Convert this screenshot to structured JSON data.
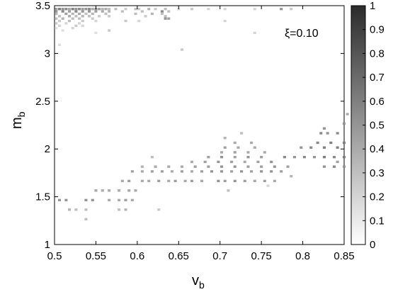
{
  "chart_data": {
    "type": "heatmap",
    "title": "",
    "xlabel": "v",
    "xlabel_subscript": "b",
    "ylabel": "m",
    "ylabel_subscript": "b",
    "xlim": [
      0.5,
      0.85
    ],
    "ylim": [
      1,
      3.5
    ],
    "xticks": [
      "0.5",
      "0.55",
      "0.6",
      "0.65",
      "0.7",
      "0.75",
      "0.8",
      "0.85"
    ],
    "yticks": [
      "1",
      "1.5",
      "2",
      "2.5",
      "3",
      "3.5"
    ],
    "annotation": "ξ=0.10",
    "colorbar": {
      "range": [
        0,
        1
      ],
      "ticks": [
        "0",
        "0.1",
        "0.2",
        "0.3",
        "0.4",
        "0.5",
        "0.6",
        "0.7",
        "0.8",
        "0.9",
        "1"
      ],
      "colormap": "gray-reversed"
    },
    "cell_size": {
      "dv": 0.0035,
      "dm": 0.025
    },
    "cells": [
      [
        0.502,
        3.465,
        0.45
      ],
      [
        0.506,
        3.465,
        0.6
      ],
      [
        0.51,
        3.465,
        0.5
      ],
      [
        0.514,
        3.465,
        0.55
      ],
      [
        0.518,
        3.465,
        0.4
      ],
      [
        0.522,
        3.465,
        0.6
      ],
      [
        0.526,
        3.465,
        0.5
      ],
      [
        0.53,
        3.465,
        0.55
      ],
      [
        0.534,
        3.465,
        0.45
      ],
      [
        0.538,
        3.465,
        0.5
      ],
      [
        0.542,
        3.465,
        0.55
      ],
      [
        0.546,
        3.465,
        0.4
      ],
      [
        0.55,
        3.465,
        0.5
      ],
      [
        0.554,
        3.465,
        0.45
      ],
      [
        0.558,
        3.465,
        0.35
      ],
      [
        0.562,
        3.465,
        0.4
      ],
      [
        0.566,
        3.465,
        0.3
      ],
      [
        0.574,
        3.465,
        0.3
      ],
      [
        0.586,
        3.465,
        0.25
      ],
      [
        0.598,
        3.465,
        0.3
      ],
      [
        0.602,
        3.465,
        0.25
      ],
      [
        0.614,
        3.465,
        0.35
      ],
      [
        0.622,
        3.465,
        0.25
      ],
      [
        0.634,
        3.465,
        0.3
      ],
      [
        0.65,
        3.465,
        0.2
      ],
      [
        0.666,
        3.465,
        0.25
      ],
      [
        0.686,
        3.465,
        0.2
      ],
      [
        0.706,
        3.465,
        0.2
      ],
      [
        0.742,
        3.465,
        0.2
      ],
      [
        0.774,
        3.465,
        0.5
      ],
      [
        0.786,
        3.465,
        0.25
      ],
      [
        0.502,
        3.44,
        0.5
      ],
      [
        0.51,
        3.44,
        0.55
      ],
      [
        0.518,
        3.44,
        0.45
      ],
      [
        0.526,
        3.44,
        0.55
      ],
      [
        0.534,
        3.44,
        0.5
      ],
      [
        0.542,
        3.44,
        0.5
      ],
      [
        0.55,
        3.44,
        0.45
      ],
      [
        0.558,
        3.44,
        0.4
      ],
      [
        0.566,
        3.44,
        0.35
      ],
      [
        0.582,
        3.44,
        0.3
      ],
      [
        0.606,
        3.44,
        0.3
      ],
      [
        0.63,
        3.44,
        0.55
      ],
      [
        0.638,
        3.44,
        0.3
      ],
      [
        0.502,
        3.415,
        0.35
      ],
      [
        0.514,
        3.415,
        0.45
      ],
      [
        0.522,
        3.415,
        0.35
      ],
      [
        0.53,
        3.415,
        0.4
      ],
      [
        0.538,
        3.415,
        0.3
      ],
      [
        0.546,
        3.415,
        0.35
      ],
      [
        0.562,
        3.415,
        0.3
      ],
      [
        0.598,
        3.415,
        0.3
      ],
      [
        0.618,
        3.415,
        0.35
      ],
      [
        0.63,
        3.415,
        0.3
      ],
      [
        0.506,
        3.39,
        0.3
      ],
      [
        0.518,
        3.39,
        0.4
      ],
      [
        0.526,
        3.39,
        0.3
      ],
      [
        0.534,
        3.39,
        0.35
      ],
      [
        0.542,
        3.39,
        0.3
      ],
      [
        0.554,
        3.39,
        0.25
      ],
      [
        0.566,
        3.39,
        0.25
      ],
      [
        0.61,
        3.39,
        0.25
      ],
      [
        0.634,
        3.39,
        0.3
      ],
      [
        0.502,
        3.365,
        0.3
      ],
      [
        0.51,
        3.365,
        0.35
      ],
      [
        0.522,
        3.365,
        0.3
      ],
      [
        0.53,
        3.365,
        0.3
      ],
      [
        0.546,
        3.365,
        0.25
      ],
      [
        0.634,
        3.365,
        0.5
      ],
      [
        0.638,
        3.365,
        0.45
      ],
      [
        0.506,
        3.34,
        0.25
      ],
      [
        0.518,
        3.34,
        0.3
      ],
      [
        0.534,
        3.34,
        0.25
      ],
      [
        0.55,
        3.34,
        0.2
      ],
      [
        0.586,
        3.34,
        0.25
      ],
      [
        0.602,
        3.34,
        0.2
      ],
      [
        0.706,
        3.34,
        0.2
      ],
      [
        0.502,
        3.315,
        0.25
      ],
      [
        0.514,
        3.315,
        0.2
      ],
      [
        0.53,
        3.315,
        0.2
      ],
      [
        0.506,
        3.29,
        0.2
      ],
      [
        0.526,
        3.29,
        0.25
      ],
      [
        0.534,
        3.29,
        0.2
      ],
      [
        0.502,
        3.265,
        0.15
      ],
      [
        0.522,
        3.265,
        0.2
      ],
      [
        0.566,
        3.24,
        0.25
      ],
      [
        0.51,
        3.24,
        0.15
      ],
      [
        0.55,
        3.215,
        0.15
      ],
      [
        0.742,
        3.215,
        0.2
      ],
      [
        0.506,
        3.09,
        0.15
      ],
      [
        0.654,
        3.04,
        0.25
      ],
      [
        0.506,
        1.465,
        0.5
      ],
      [
        0.514,
        1.465,
        0.5
      ],
      [
        0.538,
        1.465,
        0.5
      ],
      [
        0.546,
        1.465,
        0.5
      ],
      [
        0.578,
        1.465,
        0.4
      ],
      [
        0.586,
        1.465,
        0.45
      ],
      [
        0.594,
        1.465,
        0.4
      ],
      [
        0.566,
        1.465,
        0.4
      ],
      [
        0.55,
        1.565,
        0.4
      ],
      [
        0.558,
        1.565,
        0.4
      ],
      [
        0.566,
        1.565,
        0.4
      ],
      [
        0.578,
        1.565,
        0.4
      ],
      [
        0.59,
        1.565,
        0.4
      ],
      [
        0.598,
        1.565,
        0.4
      ],
      [
        0.582,
        1.665,
        0.4
      ],
      [
        0.59,
        1.665,
        0.45
      ],
      [
        0.606,
        1.665,
        0.4
      ],
      [
        0.614,
        1.665,
        0.4
      ],
      [
        0.626,
        1.665,
        0.45
      ],
      [
        0.638,
        1.665,
        0.4
      ],
      [
        0.646,
        1.665,
        0.45
      ],
      [
        0.658,
        1.665,
        0.4
      ],
      [
        0.666,
        1.665,
        0.45
      ],
      [
        0.678,
        1.665,
        0.4
      ],
      [
        0.698,
        1.665,
        0.5
      ],
      [
        0.706,
        1.665,
        0.45
      ],
      [
        0.718,
        1.665,
        0.5
      ],
      [
        0.73,
        1.665,
        0.45
      ],
      [
        0.742,
        1.665,
        0.4
      ],
      [
        0.754,
        1.665,
        0.45
      ],
      [
        0.766,
        1.665,
        0.4
      ],
      [
        0.594,
        1.765,
        0.45
      ],
      [
        0.606,
        1.765,
        0.4
      ],
      [
        0.618,
        1.765,
        0.45
      ],
      [
        0.63,
        1.765,
        0.45
      ],
      [
        0.642,
        1.765,
        0.4
      ],
      [
        0.654,
        1.765,
        0.45
      ],
      [
        0.666,
        1.765,
        0.4
      ],
      [
        0.678,
        1.765,
        0.45
      ],
      [
        0.69,
        1.765,
        0.5
      ],
      [
        0.702,
        1.765,
        0.5
      ],
      [
        0.714,
        1.765,
        0.45
      ],
      [
        0.726,
        1.765,
        0.5
      ],
      [
        0.738,
        1.765,
        0.45
      ],
      [
        0.75,
        1.765,
        0.5
      ],
      [
        0.762,
        1.765,
        0.5
      ],
      [
        0.774,
        1.765,
        0.45
      ],
      [
        0.606,
        1.815,
        0.35
      ],
      [
        0.622,
        1.815,
        0.4
      ],
      [
        0.638,
        1.815,
        0.4
      ],
      [
        0.654,
        1.815,
        0.4
      ],
      [
        0.67,
        1.815,
        0.45
      ],
      [
        0.686,
        1.815,
        0.45
      ],
      [
        0.702,
        1.815,
        0.5
      ],
      [
        0.718,
        1.815,
        0.5
      ],
      [
        0.734,
        1.815,
        0.45
      ],
      [
        0.75,
        1.815,
        0.45
      ],
      [
        0.766,
        1.815,
        0.5
      ],
      [
        0.782,
        1.815,
        0.45
      ],
      [
        0.666,
        1.865,
        0.4
      ],
      [
        0.682,
        1.865,
        0.45
      ],
      [
        0.698,
        1.865,
        0.5
      ],
      [
        0.714,
        1.865,
        0.45
      ],
      [
        0.73,
        1.865,
        0.4
      ],
      [
        0.746,
        1.865,
        0.45
      ],
      [
        0.762,
        1.865,
        0.5
      ],
      [
        0.778,
        1.915,
        0.55
      ],
      [
        0.79,
        1.915,
        0.5
      ],
      [
        0.802,
        1.915,
        0.55
      ],
      [
        0.814,
        1.915,
        0.5
      ],
      [
        0.826,
        1.915,
        0.6
      ],
      [
        0.838,
        1.915,
        0.55
      ],
      [
        0.85,
        1.915,
        0.6
      ],
      [
        0.686,
        1.915,
        0.45
      ],
      [
        0.702,
        1.915,
        0.5
      ],
      [
        0.718,
        1.915,
        0.45
      ],
      [
        0.734,
        1.915,
        0.5
      ],
      [
        0.75,
        1.915,
        0.45
      ],
      [
        0.702,
        1.965,
        0.4
      ],
      [
        0.718,
        1.965,
        0.45
      ],
      [
        0.734,
        1.965,
        0.4
      ],
      [
        0.754,
        1.965,
        0.4
      ],
      [
        0.706,
        2.015,
        0.45
      ],
      [
        0.722,
        2.015,
        0.4
      ],
      [
        0.742,
        2.015,
        0.4
      ],
      [
        0.798,
        2.015,
        0.5
      ],
      [
        0.81,
        2.015,
        0.55
      ],
      [
        0.826,
        2.015,
        0.6
      ],
      [
        0.842,
        2.015,
        0.6
      ],
      [
        0.718,
        2.065,
        0.4
      ],
      [
        0.738,
        2.065,
        0.4
      ],
      [
        0.818,
        2.065,
        0.55
      ],
      [
        0.834,
        2.065,
        0.6
      ],
      [
        0.85,
        2.065,
        0.6
      ],
      [
        0.706,
        2.115,
        0.35
      ],
      [
        0.726,
        2.165,
        0.3
      ],
      [
        0.822,
        2.165,
        0.55
      ],
      [
        0.83,
        2.165,
        0.5
      ],
      [
        0.842,
        2.165,
        0.55
      ],
      [
        0.826,
        2.215,
        0.5
      ],
      [
        0.85,
        2.265,
        0.5
      ],
      [
        0.826,
        1.815,
        0.5
      ],
      [
        0.838,
        1.815,
        0.55
      ],
      [
        0.85,
        1.815,
        0.5
      ],
      [
        0.842,
        1.865,
        0.45
      ],
      [
        0.518,
        1.365,
        0.35
      ],
      [
        0.526,
        1.365,
        0.3
      ],
      [
        0.538,
        1.365,
        0.3
      ],
      [
        0.578,
        1.365,
        0.3
      ],
      [
        0.586,
        1.365,
        0.35
      ],
      [
        0.538,
        1.265,
        0.3
      ],
      [
        0.626,
        1.365,
        0.25
      ],
      [
        0.618,
        1.915,
        0.3
      ],
      [
        0.71,
        1.565,
        0.3
      ],
      [
        0.758,
        1.615,
        0.2
      ],
      [
        0.786,
        1.715,
        0.35
      ],
      [
        0.854,
        2.365,
        0.4
      ]
    ]
  }
}
